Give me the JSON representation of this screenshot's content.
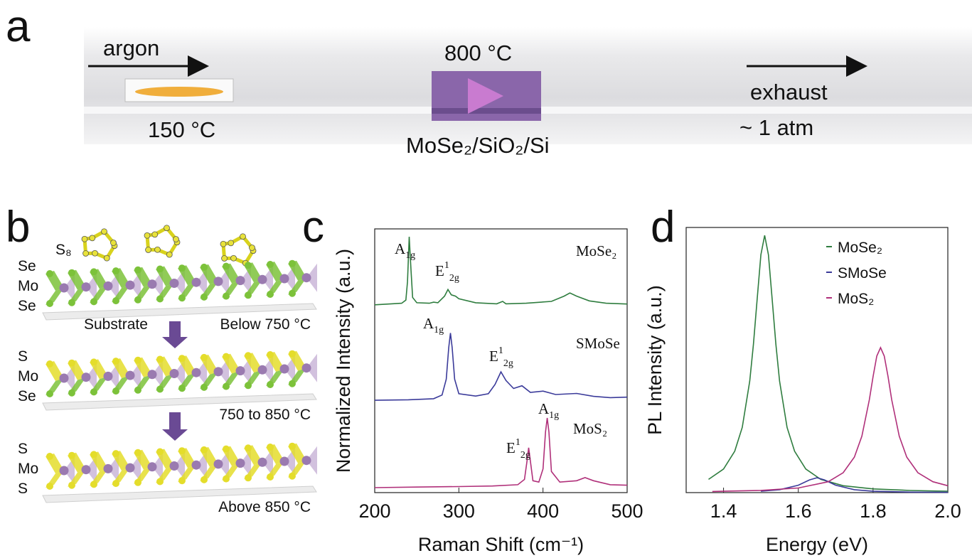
{
  "panel_a": {
    "label": "a",
    "inlet": "argon",
    "furnace_temp": "800 °C",
    "outlet": "exhaust",
    "source_temp": "150 °C",
    "pressure": "~ 1 atm",
    "substrate": "MoSe₂/SiO₂/Si"
  },
  "panel_b": {
    "label": "b",
    "molecule": "S₈",
    "stages": [
      {
        "layers": [
          "Se",
          "Mo",
          "Se"
        ],
        "substrate": "Substrate",
        "condition": "Below 750 °C"
      },
      {
        "layers": [
          "S",
          "Mo",
          "Se"
        ],
        "condition": "750 to 850 °C"
      },
      {
        "layers": [
          "S",
          "Mo",
          "S"
        ],
        "condition": "Above 850 °C"
      }
    ]
  },
  "chart_data": [
    {
      "type": "line",
      "panel_label": "c",
      "x_label": "Raman Shift (cm⁻¹)",
      "y_label": "Normalized Intensity (a.u.)",
      "xlim": [
        200,
        500
      ],
      "xticks": [
        200,
        300,
        400,
        500
      ],
      "ylim": [
        0,
        1
      ],
      "series": [
        {
          "name": "MoSe₂",
          "color": "#2f7d3f",
          "x": [
            200,
            220,
            232,
            237,
            239,
            241,
            243,
            245,
            250,
            265,
            270,
            275,
            283,
            287,
            291,
            296,
            300,
            320,
            345,
            352,
            356,
            380,
            410,
            425,
            432,
            440,
            455,
            475,
            500
          ],
          "values": [
            0.712,
            0.716,
            0.718,
            0.73,
            0.8,
            0.97,
            0.85,
            0.74,
            0.72,
            0.718,
            0.722,
            0.72,
            0.745,
            0.77,
            0.75,
            0.745,
            0.735,
            0.72,
            0.716,
            0.725,
            0.716,
            0.718,
            0.725,
            0.745,
            0.757,
            0.745,
            0.727,
            0.718,
            0.715
          ]
        },
        {
          "name": "SMoSe",
          "color": "#3b3b9a",
          "x": [
            200,
            240,
            270,
            280,
            285,
            288,
            290,
            292,
            295,
            300,
            320,
            335,
            343,
            350,
            356,
            365,
            375,
            385,
            400,
            415,
            440,
            460,
            480,
            500
          ],
          "values": [
            0.35,
            0.352,
            0.356,
            0.37,
            0.43,
            0.55,
            0.605,
            0.55,
            0.43,
            0.375,
            0.366,
            0.375,
            0.41,
            0.458,
            0.425,
            0.395,
            0.405,
            0.38,
            0.385,
            0.372,
            0.376,
            0.365,
            0.36,
            0.362
          ]
        },
        {
          "name": "MoS₂",
          "color": "#b0307a",
          "x": [
            200,
            250,
            300,
            340,
            370,
            378,
            381,
            383,
            385,
            388,
            395,
            400,
            403,
            405,
            407,
            410,
            420,
            440,
            450,
            460,
            480,
            500
          ],
          "values": [
            0.019,
            0.021,
            0.023,
            0.025,
            0.03,
            0.05,
            0.12,
            0.17,
            0.12,
            0.045,
            0.04,
            0.09,
            0.23,
            0.283,
            0.23,
            0.08,
            0.04,
            0.045,
            0.057,
            0.045,
            0.03,
            0.028
          ]
        }
      ],
      "annotations": [
        {
          "base": "A",
          "sub": "1g"
        },
        {
          "base": "E",
          "sup": "1",
          "sub": "2g"
        },
        {
          "base": "A",
          "sub": "1g"
        },
        {
          "base": "E",
          "sup": "1",
          "sub": "2g"
        },
        {
          "base": "E",
          "sup": "1",
          "sub": "2g"
        },
        {
          "base": "A",
          "sub": "1g"
        }
      ]
    },
    {
      "type": "line",
      "panel_label": "d",
      "x_label": "Energy (eV)",
      "y_label": "PL Intensity (a.u.)",
      "xlim": [
        1.3,
        2.0
      ],
      "xticks": [
        1.4,
        1.6,
        1.8,
        {
          "value": 2,
          "label": "2.0"
        }
      ],
      "ylim": [
        0,
        1
      ],
      "series": [
        {
          "name": "MoSe₂",
          "color": "#2f7d3f",
          "x": [
            1.36,
            1.4,
            1.43,
            1.45,
            1.47,
            1.48,
            1.49,
            1.5,
            1.51,
            1.52,
            1.53,
            1.54,
            1.55,
            1.57,
            1.59,
            1.62,
            1.66,
            1.72,
            1.8,
            1.9,
            2.0
          ],
          "values": [
            0.05,
            0.089,
            0.156,
            0.246,
            0.42,
            0.559,
            0.731,
            0.897,
            0.97,
            0.897,
            0.731,
            0.559,
            0.42,
            0.246,
            0.156,
            0.089,
            0.05,
            0.026,
            0.014,
            0.008,
            0.005
          ]
        },
        {
          "name": "SMoSe",
          "color": "#3b3b9a",
          "x": [
            1.5,
            1.55,
            1.6,
            1.63,
            1.65,
            1.67,
            1.7,
            1.75,
            1.8,
            1.9,
            2.0
          ],
          "values": [
            0.005,
            0.011,
            0.028,
            0.048,
            0.056,
            0.048,
            0.028,
            0.011,
            0.005,
            0.002,
            0.001
          ]
        },
        {
          "name": "MoS₂",
          "color": "#b0307a",
          "x": [
            1.37,
            1.5,
            1.6,
            1.68,
            1.72,
            1.75,
            1.77,
            1.79,
            1.8,
            1.81,
            1.82,
            1.83,
            1.84,
            1.85,
            1.87,
            1.89,
            1.92,
            1.96,
            2.0
          ],
          "values": [
            0.0043,
            0.0084,
            0.0175,
            0.041,
            0.075,
            0.134,
            0.213,
            0.35,
            0.438,
            0.515,
            0.547,
            0.515,
            0.438,
            0.35,
            0.213,
            0.134,
            0.075,
            0.041,
            0.026
          ]
        }
      ]
    }
  ]
}
